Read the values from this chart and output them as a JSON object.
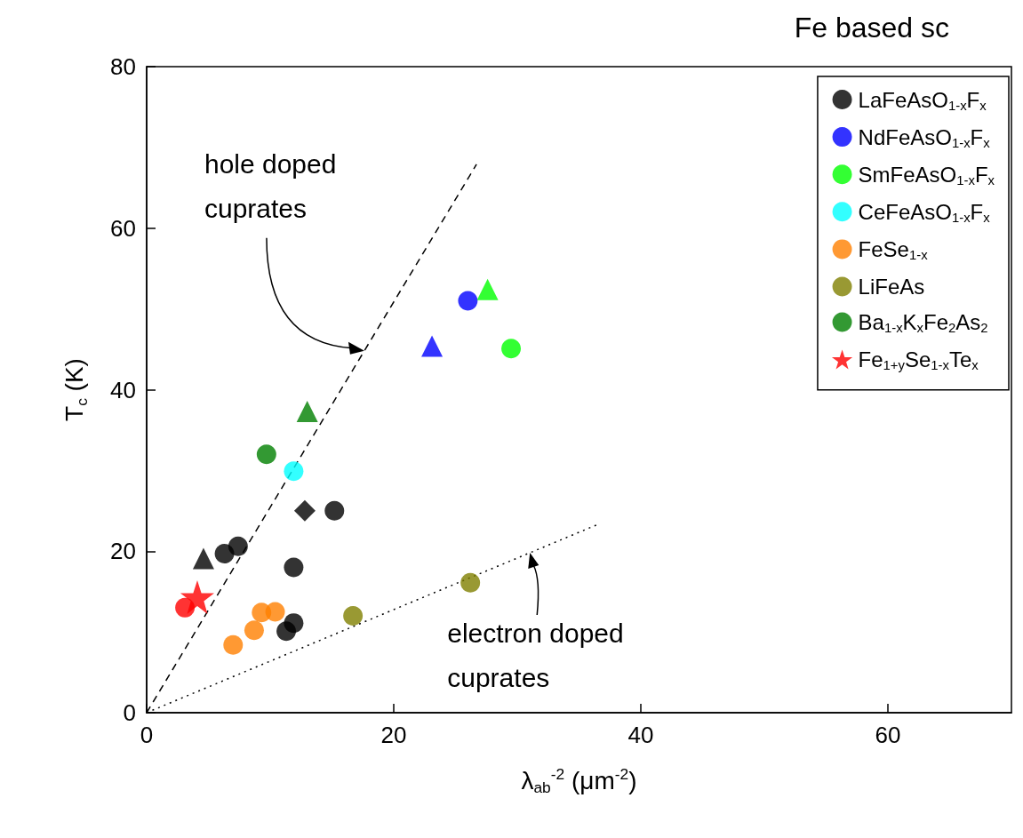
{
  "chart_data": {
    "type": "scatter",
    "title": "Fe based sc",
    "xlabel": "λ$_{ab}$$^{-2}$ (μm$^{-2}$)",
    "ylabel": "T$_{c}$ (K)",
    "xlim": [
      0,
      70
    ],
    "xticks": [
      0,
      20,
      40,
      60
    ],
    "ylim": [
      0,
      80
    ],
    "yticks": [
      0,
      20,
      40,
      60,
      80
    ],
    "grid": false,
    "legend": "top right",
    "series": [
      {
        "name": "LaFeAsO$_{1-x}$F$_{x}$",
        "color": "#000000",
        "marker": "circle",
        "x": [
          6.3,
          7.4,
          11.9,
          15.2,
          11.3,
          11.9
        ],
        "values": [
          19.7,
          20.6,
          18.0,
          25.0,
          10.1,
          11.1
        ]
      },
      {
        "color": "#000000",
        "marker": "triangle",
        "x": [
          4.6
        ],
        "values": [
          19.1
        ]
      },
      {
        "color": "#000000",
        "marker": "diamond",
        "x": [
          12.8
        ],
        "values": [
          25.0
        ]
      },
      {
        "name": "NdFeAsO$_{1-x}$F$_{x}$",
        "color": "#0000ff",
        "marker": "circle",
        "x": [
          26.0
        ],
        "values": [
          51.0
        ]
      },
      {
        "color": "#0000ff",
        "marker": "triangle",
        "x": [
          23.1
        ],
        "values": [
          45.4
        ]
      },
      {
        "name": "SmFeAsO$_{1-x}$F$_{x}$",
        "color": "#00ff00",
        "marker": "circle",
        "x": [
          29.5
        ],
        "values": [
          45.1
        ]
      },
      {
        "color": "#00ff00",
        "marker": "triangle",
        "x": [
          27.6
        ],
        "values": [
          52.4
        ]
      },
      {
        "name": "CeFeAsO$_{1-x}$F$_{x}$",
        "color": "#00ffff",
        "marker": "circle",
        "x": [
          11.9
        ],
        "values": [
          29.9
        ]
      },
      {
        "name": "FeSe$_{1-x}$",
        "color": "#ff8000",
        "marker": "circle",
        "x": [
          7.0,
          8.7,
          9.3,
          10.4
        ],
        "values": [
          8.4,
          10.2,
          12.4,
          12.5
        ]
      },
      {
        "name": "LiFeAs",
        "color": "#808000",
        "marker": "circle",
        "x": [
          16.7,
          26.2
        ],
        "values": [
          12.0,
          16.1
        ]
      },
      {
        "name": "Ba$_{1-x}$K$_{x}$Fe$_{2}$As$_{2}$",
        "color": "#008000",
        "marker": "circle",
        "x": [
          9.7
        ],
        "values": [
          32.0
        ]
      },
      {
        "color": "#008000",
        "marker": "triangle",
        "x": [
          13.0
        ],
        "values": [
          37.3
        ]
      },
      {
        "name": "Fe$_{1+y}$Se$_{1-x}$Te$_{x}$",
        "color": "#ff0000",
        "marker": "star",
        "x": [
          4.1
        ],
        "values": [
          14.3
        ]
      },
      {
        "color": "#ff0000",
        "marker": "circle",
        "x": [
          3.1
        ],
        "values": [
          13.0
        ]
      },
      {
        "type": "line",
        "color": "#000000",
        "line_style": "dashed",
        "marker": "none",
        "x": [
          0,
          26.7
        ],
        "values": [
          0,
          67.9
        ]
      },
      {
        "type": "line",
        "color": "#000000",
        "line_style": "dotted",
        "marker": "none",
        "x": [
          0,
          36.5
        ],
        "values": [
          0,
          23.3
        ]
      }
    ],
    "annotations": [
      "hole doped\ncuprates",
      "electron doped\ncuprates"
    ]
  }
}
